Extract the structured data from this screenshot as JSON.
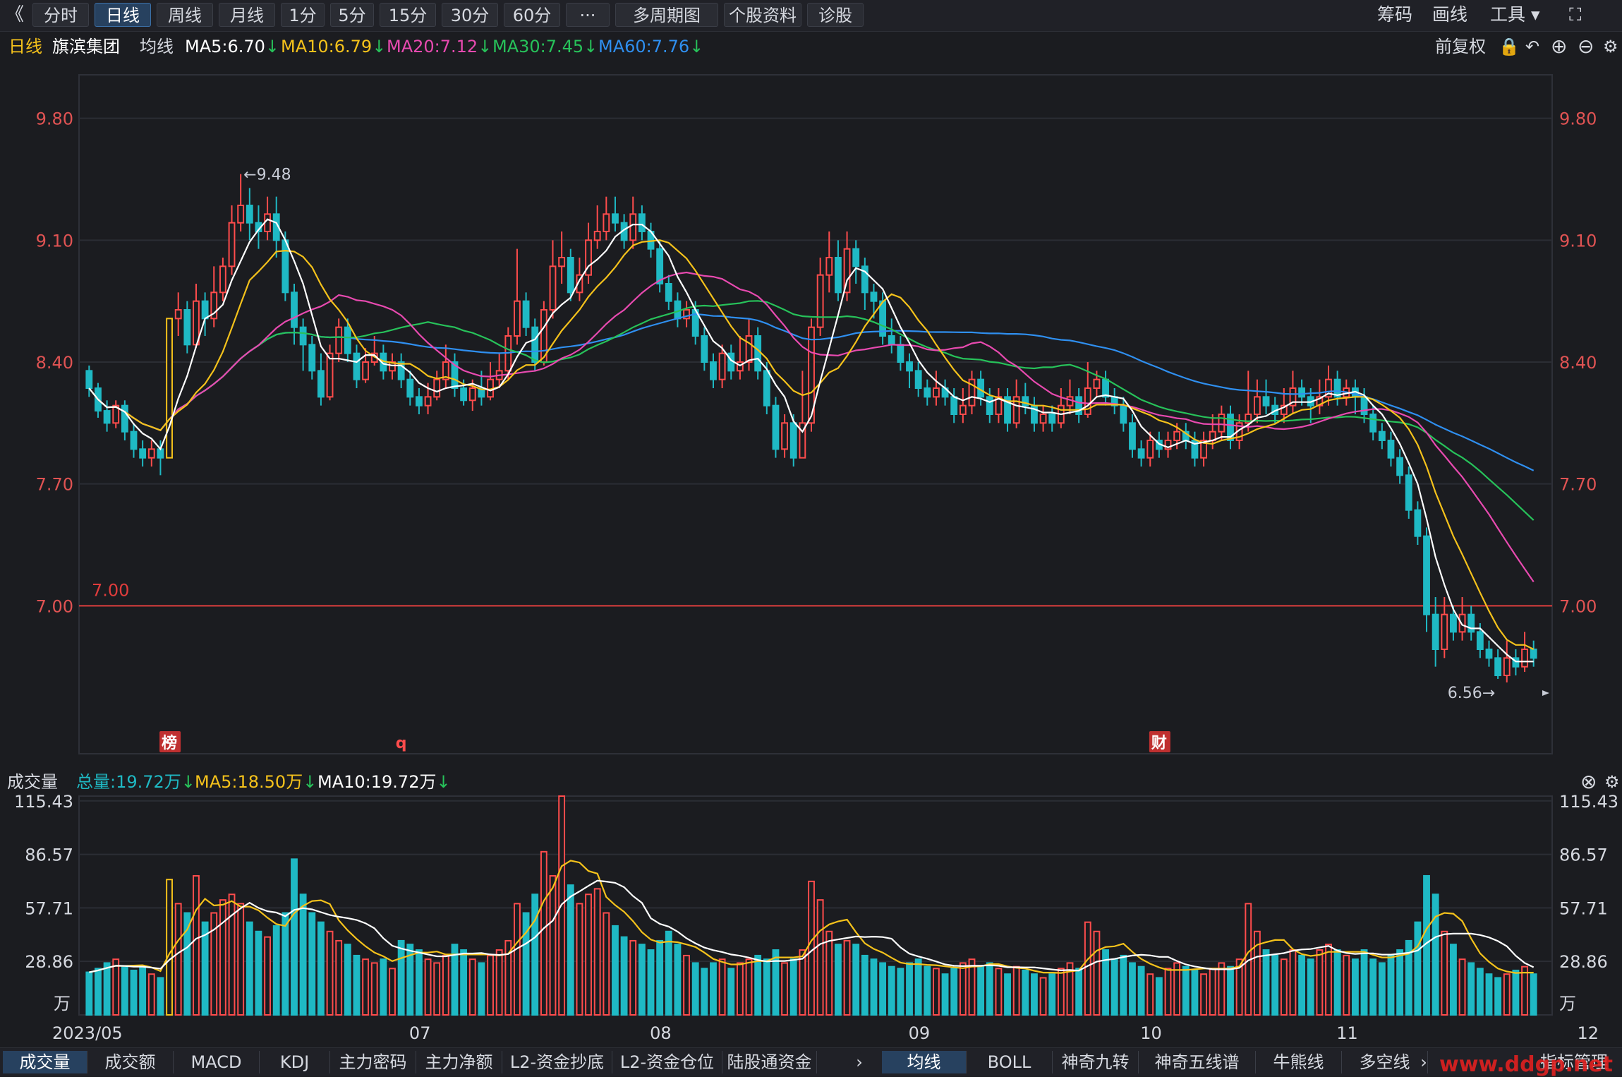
{
  "toolbar": {
    "back": "《",
    "tabs": [
      "分时",
      "日线",
      "周线",
      "月线",
      "1分",
      "5分",
      "15分",
      "30分",
      "60分",
      "···",
      "多周期图",
      "个股资料",
      "诊股"
    ],
    "active_tab": "日线",
    "right": [
      "筹码",
      "画线",
      "工具",
      "⛶"
    ]
  },
  "info": {
    "period": "日线",
    "stock_name": "旗滨集团",
    "avg_line": "均线",
    "ma5": "MA5:6.70",
    "ma10": "MA10:6.79",
    "ma20": "MA20:7.12",
    "ma30": "MA30:7.45",
    "ma60": "MA60:7.76",
    "adjust": "前复权"
  },
  "colors": {
    "up": "#ff4c4c",
    "down": "#1fb9c4",
    "ma5": "#ffffff",
    "ma10": "#f5c21b",
    "ma20": "#e84ab0",
    "ma30": "#27c25a",
    "ma60": "#2f8ff0"
  },
  "annotations": {
    "high": "←9.48",
    "low": "6.56→",
    "hline": "7.00",
    "markers": [
      "榜",
      "q",
      "财"
    ]
  },
  "volume": {
    "title": "成交量",
    "total": "总量:19.72万",
    "ma5": "MA5:18.50万",
    "ma10": "MA10:19.72万",
    "unit": "万"
  },
  "bottom": {
    "left_tabs": [
      "成交量",
      "成交额",
      "MACD",
      "KDJ",
      "主力密码",
      "主力净额",
      "L2-资金抄底",
      "L2-资金仓位",
      "陆股通资金"
    ],
    "right_tabs": [
      "均线",
      "BOLL",
      "神奇九转",
      "神奇五线谱",
      "牛熊线",
      "多空线"
    ],
    "more": "指标管理",
    "watermark": "www.ddgp.net"
  },
  "chart_data": {
    "type": "candlestick",
    "price_ticks": [
      "9.80",
      "9.10",
      "8.40",
      "7.70",
      "7.00"
    ],
    "price_range": [
      6.15,
      10.05
    ],
    "volume_ticks": [
      "115.43",
      "86.57",
      "57.71",
      "28.86"
    ],
    "volume_range": [
      0,
      118
    ],
    "dates": [
      {
        "label": "2023/05",
        "index": 0
      },
      {
        "label": "07",
        "index": 37
      },
      {
        "label": "08",
        "index": 64
      },
      {
        "label": "09",
        "index": 93
      },
      {
        "label": "10",
        "index": 119
      },
      {
        "label": "11",
        "index": 141
      },
      {
        "label": "12",
        "index": 168
      }
    ],
    "candles": [
      [
        8.35,
        8.25,
        8.38,
        8.2,
        23
      ],
      [
        8.25,
        8.12,
        8.28,
        8.08,
        25
      ],
      [
        8.12,
        8.05,
        8.18,
        8.0,
        28
      ],
      [
        8.05,
        8.15,
        8.18,
        8.02,
        30
      ],
      [
        8.15,
        8.0,
        8.18,
        7.95,
        26
      ],
      [
        8.0,
        7.9,
        8.05,
        7.85,
        24
      ],
      [
        7.9,
        7.85,
        7.95,
        7.8,
        26
      ],
      [
        7.85,
        7.9,
        7.95,
        7.8,
        22
      ],
      [
        7.9,
        7.85,
        7.95,
        7.75,
        20
      ],
      [
        7.85,
        8.65,
        8.65,
        7.85,
        73
      ],
      [
        8.65,
        8.7,
        8.8,
        8.55,
        60
      ],
      [
        8.7,
        8.5,
        8.75,
        8.45,
        55
      ],
      [
        8.5,
        8.75,
        8.85,
        8.48,
        75
      ],
      [
        8.75,
        8.65,
        8.8,
        8.55,
        50
      ],
      [
        8.65,
        8.8,
        8.95,
        8.6,
        55
      ],
      [
        8.8,
        8.95,
        9.0,
        8.75,
        62
      ],
      [
        8.95,
        9.2,
        9.3,
        8.9,
        65
      ],
      [
        9.2,
        9.3,
        9.48,
        9.15,
        60
      ],
      [
        9.3,
        9.2,
        9.4,
        9.1,
        50
      ],
      [
        9.2,
        9.15,
        9.3,
        9.05,
        45
      ],
      [
        9.15,
        9.25,
        9.35,
        9.1,
        42
      ],
      [
        9.25,
        9.1,
        9.35,
        9.0,
        48
      ],
      [
        9.1,
        8.8,
        9.15,
        8.75,
        55
      ],
      [
        8.8,
        8.6,
        8.85,
        8.5,
        84
      ],
      [
        8.6,
        8.5,
        8.65,
        8.35,
        65
      ],
      [
        8.5,
        8.35,
        8.55,
        8.3,
        55
      ],
      [
        8.35,
        8.2,
        8.45,
        8.15,
        50
      ],
      [
        8.2,
        8.45,
        8.5,
        8.18,
        45
      ],
      [
        8.45,
        8.6,
        8.65,
        8.4,
        40
      ],
      [
        8.6,
        8.45,
        8.65,
        8.4,
        38
      ],
      [
        8.45,
        8.3,
        8.5,
        8.25,
        32
      ],
      [
        8.3,
        8.4,
        8.48,
        8.28,
        30
      ],
      [
        8.4,
        8.45,
        8.55,
        8.38,
        28
      ],
      [
        8.45,
        8.35,
        8.5,
        8.3,
        30
      ],
      [
        8.35,
        8.4,
        8.45,
        8.3,
        25
      ],
      [
        8.4,
        8.3,
        8.45,
        8.25,
        40
      ],
      [
        8.3,
        8.2,
        8.35,
        8.15,
        38
      ],
      [
        8.2,
        8.15,
        8.25,
        8.1,
        35
      ],
      [
        8.15,
        8.2,
        8.28,
        8.1,
        30
      ],
      [
        8.2,
        8.3,
        8.35,
        8.18,
        28
      ],
      [
        8.3,
        8.4,
        8.5,
        8.25,
        32
      ],
      [
        8.4,
        8.25,
        8.45,
        8.2,
        38
      ],
      [
        8.25,
        8.18,
        8.3,
        8.15,
        35
      ],
      [
        8.18,
        8.25,
        8.3,
        8.12,
        30
      ],
      [
        8.25,
        8.2,
        8.35,
        8.15,
        28
      ],
      [
        8.2,
        8.3,
        8.4,
        8.18,
        32
      ],
      [
        8.3,
        8.35,
        8.45,
        8.25,
        35
      ],
      [
        8.35,
        8.55,
        8.6,
        8.3,
        40
      ],
      [
        8.55,
        8.75,
        9.05,
        8.5,
        60
      ],
      [
        8.75,
        8.6,
        8.8,
        8.55,
        55
      ],
      [
        8.6,
        8.4,
        8.65,
        8.35,
        65
      ],
      [
        8.4,
        8.7,
        8.75,
        8.38,
        88
      ],
      [
        8.7,
        8.95,
        9.1,
        8.65,
        75
      ],
      [
        8.95,
        9.0,
        9.15,
        8.85,
        118
      ],
      [
        9.0,
        8.8,
        9.05,
        8.75,
        70
      ],
      [
        8.8,
        8.9,
        9.0,
        8.75,
        60
      ],
      [
        8.9,
        9.1,
        9.2,
        8.85,
        65
      ],
      [
        9.1,
        9.15,
        9.3,
        9.05,
        68
      ],
      [
        9.15,
        9.25,
        9.35,
        9.1,
        55
      ],
      [
        9.25,
        9.2,
        9.35,
        9.15,
        48
      ],
      [
        9.2,
        9.1,
        9.25,
        9.05,
        42
      ],
      [
        9.1,
        9.25,
        9.35,
        9.05,
        40
      ],
      [
        9.25,
        9.15,
        9.3,
        9.1,
        38
      ],
      [
        9.15,
        9.05,
        9.2,
        9.0,
        35
      ],
      [
        9.05,
        8.85,
        9.1,
        8.8,
        40
      ],
      [
        8.85,
        8.75,
        8.9,
        8.7,
        45
      ],
      [
        8.75,
        8.65,
        8.8,
        8.6,
        38
      ],
      [
        8.65,
        8.7,
        8.75,
        8.6,
        32
      ],
      [
        8.7,
        8.55,
        8.75,
        8.5,
        28
      ],
      [
        8.55,
        8.4,
        8.6,
        8.35,
        25
      ],
      [
        8.4,
        8.3,
        8.45,
        8.25,
        28
      ],
      [
        8.3,
        8.45,
        8.5,
        8.25,
        30
      ],
      [
        8.45,
        8.35,
        8.5,
        8.3,
        25
      ],
      [
        8.35,
        8.4,
        8.55,
        8.3,
        28
      ],
      [
        8.4,
        8.55,
        8.65,
        8.35,
        30
      ],
      [
        8.55,
        8.35,
        8.6,
        8.3,
        32
      ],
      [
        8.35,
        8.15,
        8.4,
        8.1,
        30
      ],
      [
        8.15,
        7.9,
        8.2,
        7.85,
        35
      ],
      [
        7.9,
        8.05,
        8.1,
        7.85,
        28
      ],
      [
        8.05,
        7.85,
        8.1,
        7.8,
        30
      ],
      [
        7.85,
        8.05,
        8.35,
        7.85,
        35
      ],
      [
        8.05,
        8.6,
        8.65,
        8.0,
        72
      ],
      [
        8.6,
        8.9,
        9.0,
        8.55,
        62
      ],
      [
        8.9,
        9.0,
        9.15,
        8.8,
        45
      ],
      [
        9.0,
        8.8,
        9.1,
        8.75,
        38
      ],
      [
        8.8,
        9.05,
        9.15,
        8.75,
        40
      ],
      [
        9.05,
        8.95,
        9.1,
        8.85,
        38
      ],
      [
        8.95,
        8.8,
        9.0,
        8.7,
        32
      ],
      [
        8.8,
        8.75,
        8.85,
        8.65,
        30
      ],
      [
        8.75,
        8.55,
        8.8,
        8.5,
        28
      ],
      [
        8.55,
        8.5,
        8.65,
        8.45,
        26
      ],
      [
        8.5,
        8.4,
        8.55,
        8.35,
        25
      ],
      [
        8.4,
        8.35,
        8.45,
        8.25,
        28
      ],
      [
        8.35,
        8.25,
        8.4,
        8.2,
        30
      ],
      [
        8.25,
        8.2,
        8.3,
        8.15,
        26
      ],
      [
        8.2,
        8.25,
        8.35,
        8.15,
        25
      ],
      [
        8.25,
        8.2,
        8.3,
        8.15,
        22
      ],
      [
        8.2,
        8.1,
        8.25,
        8.05,
        25
      ],
      [
        8.1,
        8.15,
        8.25,
        8.05,
        28
      ],
      [
        8.15,
        8.3,
        8.35,
        8.1,
        30
      ],
      [
        8.3,
        8.2,
        8.35,
        8.15,
        26
      ],
      [
        8.2,
        8.1,
        8.25,
        8.05,
        28
      ],
      [
        8.1,
        8.2,
        8.25,
        8.05,
        25
      ],
      [
        8.2,
        8.05,
        8.25,
        8.0,
        22
      ],
      [
        8.05,
        8.2,
        8.3,
        8.02,
        26
      ],
      [
        8.2,
        8.15,
        8.28,
        8.1,
        24
      ],
      [
        8.15,
        8.05,
        8.2,
        8.0,
        22
      ],
      [
        8.05,
        8.1,
        8.15,
        8.0,
        20
      ],
      [
        8.1,
        8.05,
        8.15,
        8.0,
        22
      ],
      [
        8.05,
        8.15,
        8.25,
        8.02,
        25
      ],
      [
        8.15,
        8.2,
        8.3,
        8.1,
        28
      ],
      [
        8.2,
        8.1,
        8.25,
        8.05,
        25
      ],
      [
        8.1,
        8.25,
        8.4,
        8.08,
        50
      ],
      [
        8.25,
        8.3,
        8.35,
        8.2,
        45
      ],
      [
        8.3,
        8.2,
        8.35,
        8.15,
        35
      ],
      [
        8.2,
        8.15,
        8.25,
        8.1,
        30
      ],
      [
        8.15,
        8.05,
        8.2,
        8.0,
        32
      ],
      [
        8.05,
        7.9,
        8.1,
        7.85,
        28
      ],
      [
        7.9,
        7.85,
        7.95,
        7.8,
        26
      ],
      [
        7.85,
        7.95,
        8.0,
        7.8,
        22
      ],
      [
        7.95,
        7.9,
        8.0,
        7.85,
        20
      ],
      [
        7.9,
        7.95,
        8.0,
        7.85,
        25
      ],
      [
        7.95,
        8.0,
        8.05,
        7.9,
        28
      ],
      [
        8.0,
        7.95,
        8.05,
        7.9,
        26
      ],
      [
        7.95,
        7.85,
        8.0,
        7.8,
        24
      ],
      [
        7.85,
        7.95,
        8.0,
        7.8,
        22
      ],
      [
        7.95,
        8.0,
        8.1,
        7.9,
        25
      ],
      [
        8.0,
        8.1,
        8.15,
        7.95,
        28
      ],
      [
        8.1,
        7.95,
        8.15,
        7.9,
        26
      ],
      [
        7.95,
        8.05,
        8.1,
        7.9,
        30
      ],
      [
        8.05,
        8.1,
        8.35,
        8.0,
        60
      ],
      [
        8.1,
        8.2,
        8.3,
        8.05,
        45
      ],
      [
        8.2,
        8.15,
        8.3,
        8.1,
        35
      ],
      [
        8.15,
        8.1,
        8.2,
        8.05,
        32
      ],
      [
        8.1,
        8.15,
        8.25,
        8.05,
        30
      ],
      [
        8.15,
        8.25,
        8.35,
        8.1,
        35
      ],
      [
        8.25,
        8.2,
        8.3,
        8.15,
        32
      ],
      [
        8.2,
        8.15,
        8.25,
        8.05,
        30
      ],
      [
        8.15,
        8.2,
        8.3,
        8.1,
        35
      ],
      [
        8.2,
        8.3,
        8.38,
        8.15,
        38
      ],
      [
        8.3,
        8.2,
        8.35,
        8.15,
        35
      ],
      [
        8.2,
        8.25,
        8.3,
        8.15,
        32
      ],
      [
        8.25,
        8.2,
        8.3,
        8.1,
        30
      ],
      [
        8.2,
        8.1,
        8.25,
        8.05,
        35
      ],
      [
        8.1,
        8.0,
        8.15,
        7.95,
        30
      ],
      [
        8.0,
        7.95,
        8.05,
        7.9,
        28
      ],
      [
        7.95,
        7.85,
        8.0,
        7.8,
        32
      ],
      [
        7.85,
        7.75,
        7.9,
        7.7,
        35
      ],
      [
        7.75,
        7.55,
        7.8,
        7.5,
        40
      ],
      [
        7.55,
        7.4,
        7.6,
        7.35,
        50
      ],
      [
        7.4,
        6.95,
        7.45,
        6.85,
        75
      ],
      [
        6.95,
        6.75,
        7.05,
        6.65,
        65
      ],
      [
        6.75,
        6.95,
        7.05,
        6.7,
        45
      ],
      [
        6.95,
        6.85,
        7.0,
        6.8,
        38
      ],
      [
        6.85,
        6.95,
        7.05,
        6.8,
        30
      ],
      [
        6.95,
        6.85,
        7.0,
        6.8,
        28
      ],
      [
        6.85,
        6.75,
        6.9,
        6.7,
        25
      ],
      [
        6.75,
        6.7,
        6.8,
        6.65,
        22
      ],
      [
        6.7,
        6.6,
        6.75,
        6.58,
        20
      ],
      [
        6.6,
        6.7,
        6.8,
        6.56,
        22
      ],
      [
        6.7,
        6.65,
        6.75,
        6.6,
        24
      ],
      [
        6.65,
        6.75,
        6.85,
        6.62,
        26
      ],
      [
        6.75,
        6.7,
        6.8,
        6.65,
        22
      ]
    ]
  }
}
